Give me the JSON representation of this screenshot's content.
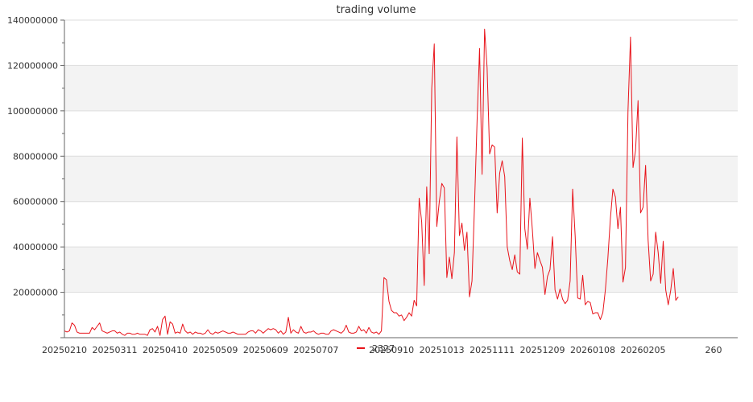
{
  "chart_data": {
    "type": "line",
    "title": "trading volume",
    "xlabel": "",
    "ylabel": "",
    "ylim": [
      0,
      140000000
    ],
    "y_ticks": [
      0,
      20000000,
      40000000,
      60000000,
      80000000,
      100000000,
      120000000,
      140000000
    ],
    "y_tick_labels": [
      "",
      "20000000",
      "40000000",
      "60000000",
      "80000000",
      "100000000",
      "120000000",
      "140000000"
    ],
    "x_tick_labels": [
      "20250210",
      "20250311",
      "20250410",
      "20250509",
      "20250609",
      "20250707",
      "20250910",
      "20251013",
      "20251111",
      "20251209",
      "20260108",
      "20260205",
      "260"
    ],
    "x_tick_positions": [
      0,
      20,
      40,
      60,
      80,
      100,
      130,
      150,
      170,
      190,
      210,
      230,
      258
    ],
    "x_range": [
      0,
      257
    ],
    "grid": "horizontal",
    "banded_background": true,
    "legend": {
      "position": "bottom-center"
    },
    "colors": {
      "line": "#e8141b",
      "band": "#f3f3f3",
      "grid": "#dddddd",
      "axis": "#666666"
    },
    "series": [
      {
        "name": "2327",
        "values": [
          3000000,
          2500000,
          3000000,
          6500000,
          5500000,
          2500000,
          2000000,
          2000000,
          2000000,
          2000000,
          2000000,
          4500000,
          3500000,
          5000000,
          6500000,
          3000000,
          2500000,
          2000000,
          2500000,
          3000000,
          3000000,
          2000000,
          2500000,
          1500000,
          1000000,
          2000000,
          2000000,
          1500000,
          1500000,
          2000000,
          1500000,
          1500000,
          1500000,
          1000000,
          3500000,
          4000000,
          2500000,
          5000000,
          1000000,
          8000000,
          9500000,
          1500000,
          7000000,
          6000000,
          2000000,
          2500000,
          2000000,
          6000000,
          3000000,
          2000000,
          2500000,
          1500000,
          2500000,
          2000000,
          2000000,
          1500000,
          2000000,
          3500000,
          2000000,
          1500000,
          2500000,
          2000000,
          2500000,
          3000000,
          2500000,
          2000000,
          2000000,
          2500000,
          2000000,
          1500000,
          1500000,
          1500000,
          1500000,
          2500000,
          3000000,
          3000000,
          2000000,
          3500000,
          3000000,
          2000000,
          3000000,
          4000000,
          3500000,
          4000000,
          3500000,
          2000000,
          3000000,
          1500000,
          2500000,
          9000000,
          2000000,
          3500000,
          2500000,
          2000000,
          5000000,
          2500000,
          2000000,
          2500000,
          2500000,
          3000000,
          2000000,
          1500000,
          2000000,
          2000000,
          1500000,
          1500000,
          3000000,
          3500000,
          3000000,
          2500000,
          2000000,
          3000000,
          5500000,
          2500000,
          2000000,
          2000000,
          2500000,
          5000000,
          3000000,
          3500000,
          2000000,
          4500000,
          2500000,
          2000000,
          2500000,
          1500000,
          3000000,
          26500000,
          25500000,
          16000000,
          12000000,
          11000000,
          11000000,
          9500000,
          10000000,
          7500000,
          9000000,
          11000000,
          9500000,
          16500000,
          14000000,
          61500000,
          51000000,
          23000000,
          66500000,
          37000000,
          110000000,
          129500000,
          49000000,
          60000000,
          68000000,
          66000000,
          26500000,
          35500000,
          26000000,
          37500000,
          88500000,
          45000000,
          50500000,
          38500000,
          46500000,
          18000000,
          25000000,
          58500000,
          95000000,
          127500000,
          72000000,
          136000000,
          119000000,
          81000000,
          85000000,
          84000000,
          55000000,
          72500000,
          78000000,
          71000000,
          40000000,
          34000000,
          30000000,
          36500000,
          29000000,
          28000000,
          88000000,
          48000000,
          39000000,
          61500000,
          47500000,
          30500000,
          37500000,
          34000000,
          31000000,
          19000000,
          27000000,
          30000000,
          44500000,
          21000000,
          17000000,
          21500000,
          17000000,
          15000000,
          16500000,
          25000000,
          65500000,
          45000000,
          17500000,
          17000000,
          27500000,
          14500000,
          16000000,
          15500000,
          10500000,
          11000000,
          11000000,
          8000000,
          11000000,
          21000000,
          35000000,
          52500000,
          65500000,
          62000000,
          48000000,
          57500000,
          24500000,
          31000000,
          100000000,
          132500000,
          75000000,
          82500000,
          104500000,
          55000000,
          57500000,
          76000000,
          43000000,
          25000000,
          28000000,
          46500000,
          37500000,
          24000000,
          42500000,
          21000000,
          14500000,
          21000000,
          30500000,
          16500000,
          18000000
        ]
      }
    ]
  }
}
